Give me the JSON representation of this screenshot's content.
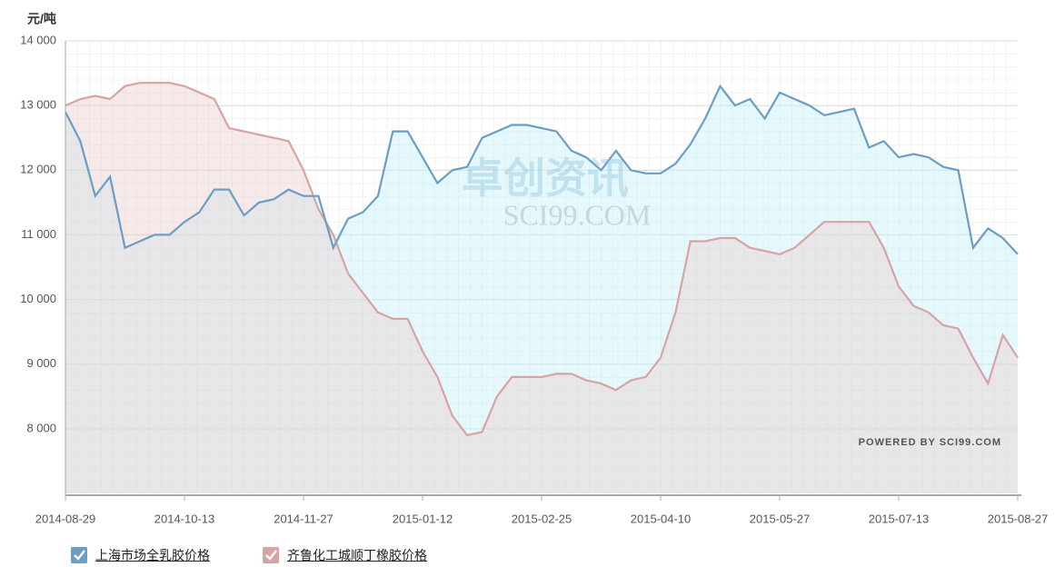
{
  "chart_data": {
    "type": "area",
    "y_axis_label": "元/吨",
    "watermark": [
      "卓创资讯",
      "SCI99.COM"
    ],
    "credit": "POWERED BY SCI99.COM",
    "categories": [
      "2014-08-29",
      null,
      null,
      null,
      null,
      null,
      null,
      null,
      "2014-10-13",
      null,
      null,
      null,
      null,
      null,
      null,
      null,
      "2014-11-27",
      null,
      null,
      null,
      null,
      null,
      null,
      null,
      "2015-01-12",
      null,
      null,
      null,
      null,
      null,
      null,
      null,
      "2015-02-25",
      null,
      null,
      null,
      null,
      null,
      null,
      null,
      "2015-04-10",
      null,
      null,
      null,
      null,
      null,
      null,
      null,
      "2015-05-27",
      null,
      null,
      null,
      null,
      null,
      null,
      null,
      "2015-07-13",
      null,
      null,
      null,
      null,
      null,
      null,
      null,
      "2015-08-27"
    ],
    "series": [
      {
        "name": "上海市场全乳胶价格",
        "color": "#6a9ec4",
        "fill": "#c5f1fb",
        "values": [
          12900,
          12450,
          11600,
          11900,
          10800,
          10900,
          11000,
          11000,
          11200,
          11350,
          11700,
          11700,
          11300,
          11500,
          11550,
          11700,
          11600,
          11600,
          10800,
          11250,
          11350,
          11600,
          12600,
          12600,
          12200,
          11800,
          12000,
          12050,
          12500,
          12600,
          12700,
          12700,
          12650,
          12600,
          12300,
          12200,
          12000,
          12300,
          12000,
          11950,
          11950,
          12100,
          12400,
          12800,
          13300,
          13000,
          13100,
          12800,
          13200,
          13100,
          13000,
          12850,
          12900,
          12950,
          12350,
          12450,
          12200,
          12250,
          12200,
          12050,
          12000,
          10800,
          11100,
          10950,
          10700
        ]
      },
      {
        "name": "齐鲁化工城顺丁橡胶价格",
        "color": "#d8a3a3",
        "fill": "#e8cfcf",
        "values": [
          13000,
          13100,
          13150,
          13100,
          13300,
          13350,
          13350,
          13350,
          13300,
          13200,
          13100,
          12650,
          12600,
          12550,
          12500,
          12450,
          12000,
          11400,
          11000,
          10400,
          10100,
          9800,
          9700,
          9700,
          9200,
          8800,
          8200,
          7900,
          7950,
          8500,
          8800,
          8800,
          8800,
          8850,
          8850,
          8750,
          8700,
          8600,
          8750,
          8800,
          9100,
          9800,
          10900,
          10900,
          10950,
          10950,
          10800,
          10750,
          10700,
          10800,
          11000,
          11200,
          11200,
          11200,
          11200,
          10800,
          10200,
          9900,
          9800,
          9600,
          9550,
          9100,
          8700,
          9450,
          9100
        ]
      }
    ],
    "ylim": [
      7000,
      14000
    ],
    "yticks": [
      {
        "value": 8000,
        "label": "8 000"
      },
      {
        "value": 9000,
        "label": "9 000"
      },
      {
        "value": 10000,
        "label": "10 000"
      },
      {
        "value": 11000,
        "label": "11 000"
      },
      {
        "value": 12000,
        "label": "12 000"
      },
      {
        "value": 13000,
        "label": "13 000"
      },
      {
        "value": 14000,
        "label": "14 000"
      }
    ],
    "grid": true,
    "legend": "bottom-left"
  }
}
